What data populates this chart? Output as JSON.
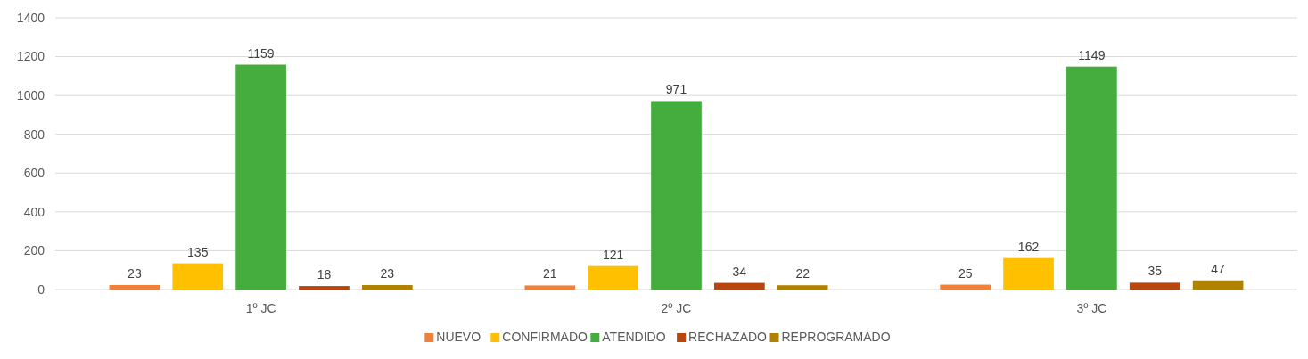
{
  "chart_data": {
    "type": "bar",
    "categories": [
      "1º JC",
      "2º JC",
      "3º JC"
    ],
    "series": [
      {
        "name": "NUEVO",
        "color": "#f0813a",
        "values": [
          23,
          21,
          25
        ]
      },
      {
        "name": "CONFIRMADO",
        "color": "#ffc000",
        "values": [
          135,
          121,
          162
        ]
      },
      {
        "name": "ATENDIDO",
        "color": "#44ad3d",
        "values": [
          1159,
          971,
          1149
        ]
      },
      {
        "name": "RECHAZADO",
        "color": "#b8460e",
        "values": [
          18,
          34,
          35
        ]
      },
      {
        "name": "REPROGRAMADO",
        "color": "#b08200",
        "values": [
          23,
          22,
          47
        ]
      }
    ],
    "ylim": [
      0,
      1400
    ],
    "yticks": [
      0,
      200,
      400,
      600,
      800,
      1000,
      1200,
      1400
    ],
    "grid": "y",
    "legend": "bottom",
    "data_labels": true
  }
}
